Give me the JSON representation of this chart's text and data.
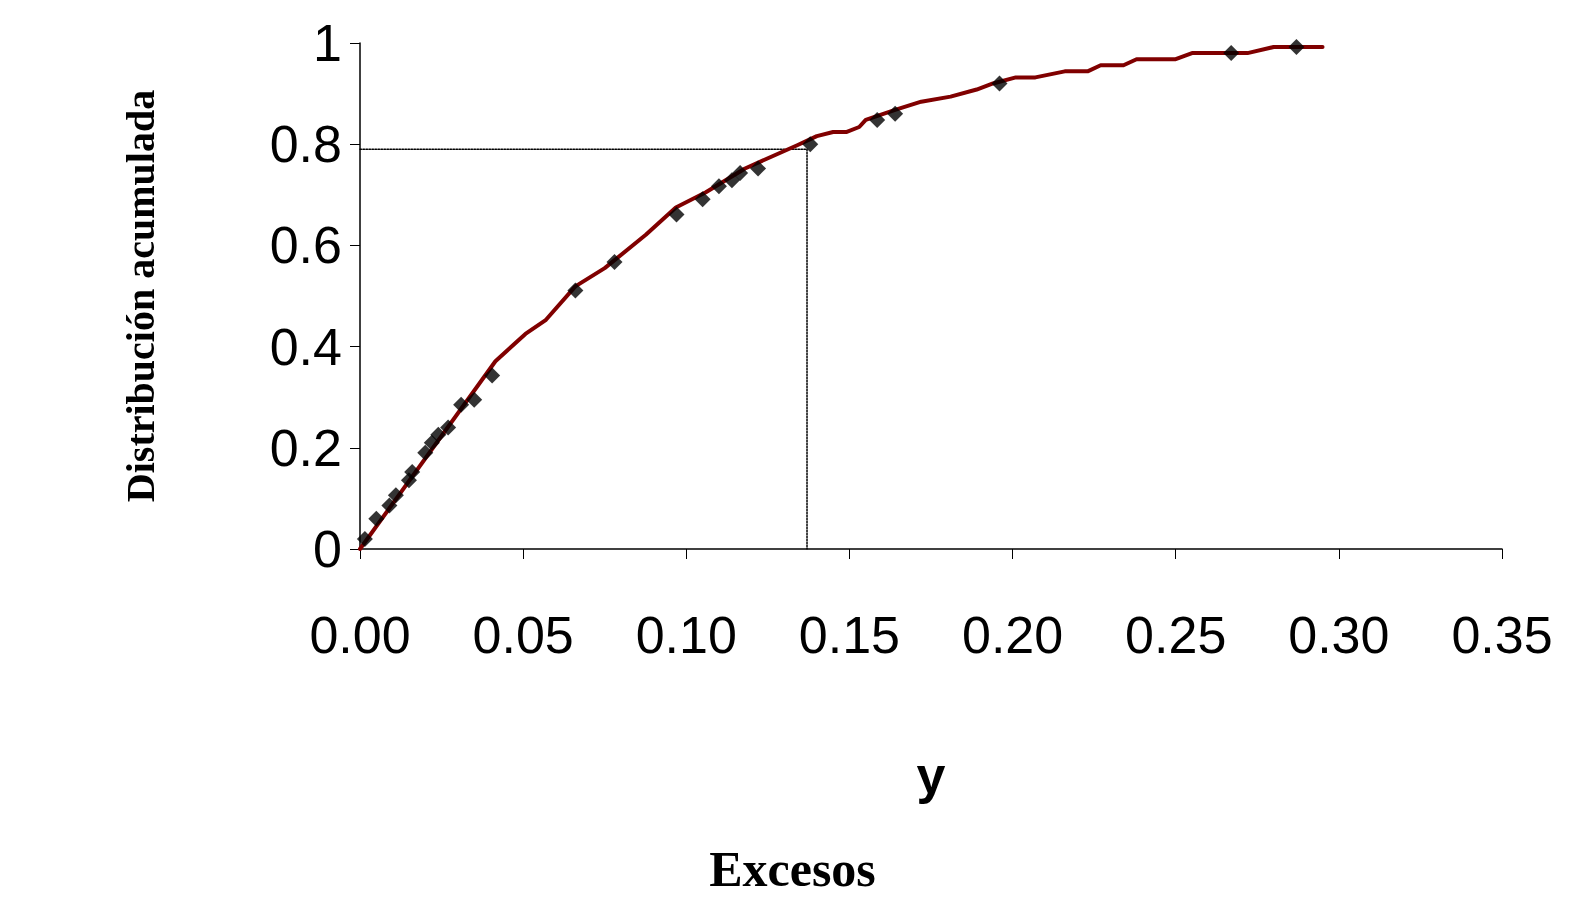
{
  "chart_data": {
    "type": "line",
    "xlabel": "y",
    "ylabel": "Distribución acumulada",
    "annotations": [
      "Excesos"
    ],
    "xlim": [
      0,
      0.35
    ],
    "xticks": [
      {
        "value": 0,
        "label": "0.00"
      },
      {
        "value": 0.05,
        "label": "0.05"
      },
      {
        "value": 0.1,
        "label": "0.10"
      },
      {
        "value": 0.15,
        "label": "0.15"
      },
      {
        "value": 0.2,
        "label": "0.20"
      },
      {
        "value": 0.25,
        "label": "0.25"
      },
      {
        "value": 0.3,
        "label": "0.30"
      },
      {
        "value": 0.35,
        "label": "0.35"
      }
    ],
    "ylim": [
      0,
      1
    ],
    "yticks": [
      0,
      0.2,
      0.4,
      0.6,
      0.8,
      1
    ],
    "grid": false,
    "series": [
      {
        "color": "#800000",
        "marker": "none",
        "line_style": "solid",
        "x": [
          0,
          0.0415,
          0.0507,
          0.057,
          0.066,
          0.075,
          0.0876,
          0.0968,
          0.106,
          0.118,
          0.134,
          0.14,
          0.145,
          0.149,
          0.153,
          0.155,
          0.164,
          0.172,
          0.181,
          0.189,
          0.194,
          0.201,
          0.207,
          0.216,
          0.223,
          0.227,
          0.234,
          0.238,
          0.25,
          0.255,
          0.272,
          0.28,
          0.295
        ],
        "values": [
          0,
          0.371,
          0.425,
          0.453,
          0.519,
          0.555,
          0.621,
          0.675,
          0.705,
          0.752,
          0.798,
          0.816,
          0.824,
          0.824,
          0.834,
          0.848,
          0.868,
          0.884,
          0.894,
          0.908,
          0.92,
          0.932,
          0.932,
          0.944,
          0.944,
          0.956,
          0.956,
          0.968,
          0.968,
          0.98,
          0.98,
          0.992,
          0.992
        ]
      },
      {
        "type": "scatter",
        "color": "#000000",
        "marker": "diamond",
        "x": [
          0.0015,
          0.005,
          0.009,
          0.011,
          0.015,
          0.016,
          0.02,
          0.022,
          0.024,
          0.027,
          0.031,
          0.035,
          0.0405,
          0.066,
          0.078,
          0.097,
          0.105,
          0.11,
          0.114,
          0.1165,
          0.122,
          0.138,
          0.1585,
          0.164,
          0.196,
          0.267,
          0.287
        ],
        "values": [
          0.02,
          0.06,
          0.086,
          0.106,
          0.136,
          0.152,
          0.19,
          0.21,
          0.226,
          0.24,
          0.285,
          0.295,
          0.343,
          0.511,
          0.567,
          0.661,
          0.691,
          0.717,
          0.729,
          0.743,
          0.752,
          0.8,
          0.848,
          0.86,
          0.92,
          0.98,
          0.992
        ]
      },
      {
        "type": "line",
        "color": "#000000",
        "marker": "none",
        "line_style": "dotted",
        "x": [
          0,
          0.137,
          0.137
        ],
        "values": [
          0.79,
          0.79,
          0
        ]
      }
    ]
  }
}
